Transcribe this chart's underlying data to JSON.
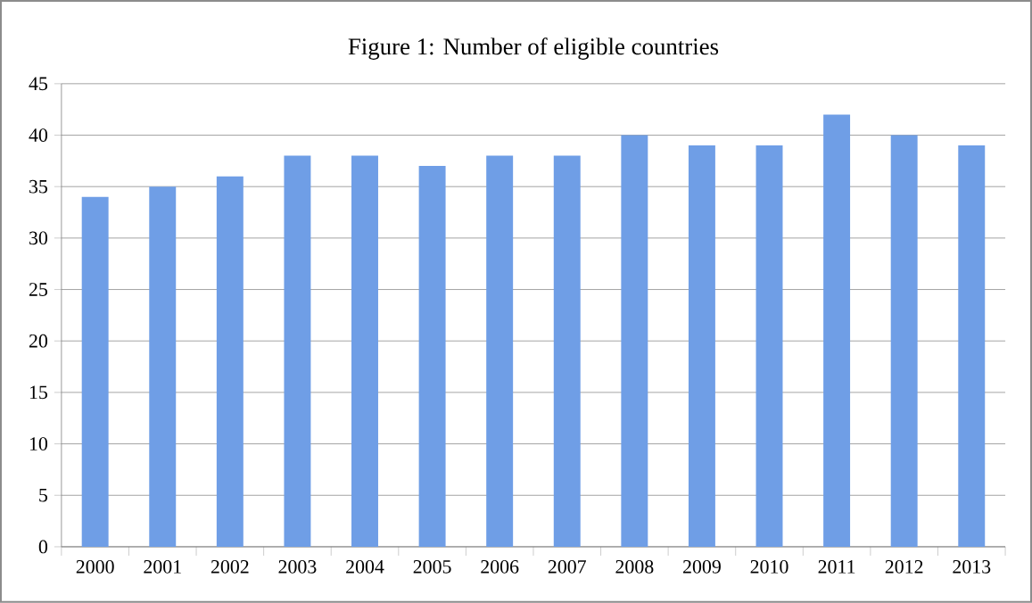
{
  "chart_data": {
    "type": "bar",
    "title": "Figure 1: Number of eligible countries",
    "categories": [
      "2000",
      "2001",
      "2002",
      "2003",
      "2004",
      "2005",
      "2006",
      "2007",
      "2008",
      "2009",
      "2010",
      "2011",
      "2012",
      "2013"
    ],
    "values": [
      34,
      35,
      36,
      38,
      38,
      37,
      38,
      38,
      40,
      39,
      39,
      42,
      40,
      39
    ],
    "color": "#6f9ee6",
    "ylim": [
      0,
      45
    ],
    "yticks": [
      0,
      5,
      10,
      15,
      20,
      25,
      30,
      35,
      40,
      45
    ],
    "grid": "y"
  }
}
